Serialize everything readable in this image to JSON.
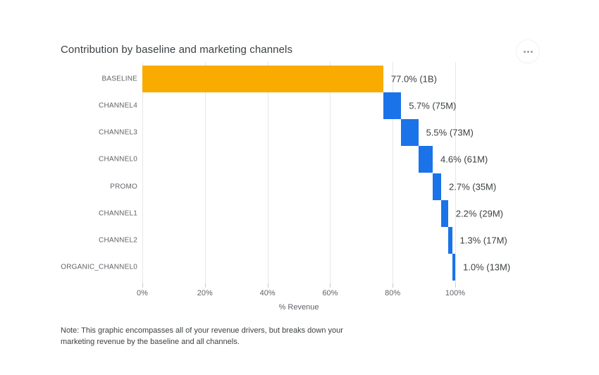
{
  "header": {
    "title": "Contribution by baseline and marketing channels"
  },
  "menu": {
    "more_options_icon": "three-dots-ellipsis"
  },
  "note": {
    "text": "Note: This graphic encompasses all of your revenue drivers, but breaks down your marketing revenue by the baseline and all channels."
  },
  "chart_data": {
    "type": "bar",
    "variant": "horizontal_waterfall",
    "title": "Contribution by baseline and marketing channels",
    "xlabel": "% Revenue",
    "ylabel": "",
    "xlim": [
      0,
      100
    ],
    "grid": true,
    "legend": false,
    "x_ticks": [
      "0%",
      "20%",
      "40%",
      "60%",
      "80%",
      "100%"
    ],
    "x_tick_values": [
      0,
      20,
      40,
      60,
      80,
      100
    ],
    "categories": [
      "BASELINE",
      "CHANNEL4",
      "CHANNEL3",
      "CHANNEL0",
      "PROMO",
      "CHANNEL1",
      "CHANNEL2",
      "ORGANIC_CHANNEL0"
    ],
    "values_pct": [
      77.0,
      5.7,
      5.5,
      4.6,
      2.7,
      2.2,
      1.3,
      1.0
    ],
    "values_abs": [
      "1B",
      "75M",
      "73M",
      "61M",
      "35M",
      "29M",
      "17M",
      "13M"
    ],
    "bar_labels": [
      "77.0% (1B)",
      "5.7% (75M)",
      "5.5% (73M)",
      "4.6% (61M)",
      "2.7% (35M)",
      "2.2% (29M)",
      "1.3% (17M)",
      "1.0% (13M)"
    ],
    "cumulative_start": [
      0.0,
      77.0,
      82.7,
      88.2,
      92.8,
      95.5,
      97.7,
      99.0
    ],
    "colors": {
      "baseline_bar": "#F9AB00",
      "channel_bar": "#1A73E8"
    }
  }
}
